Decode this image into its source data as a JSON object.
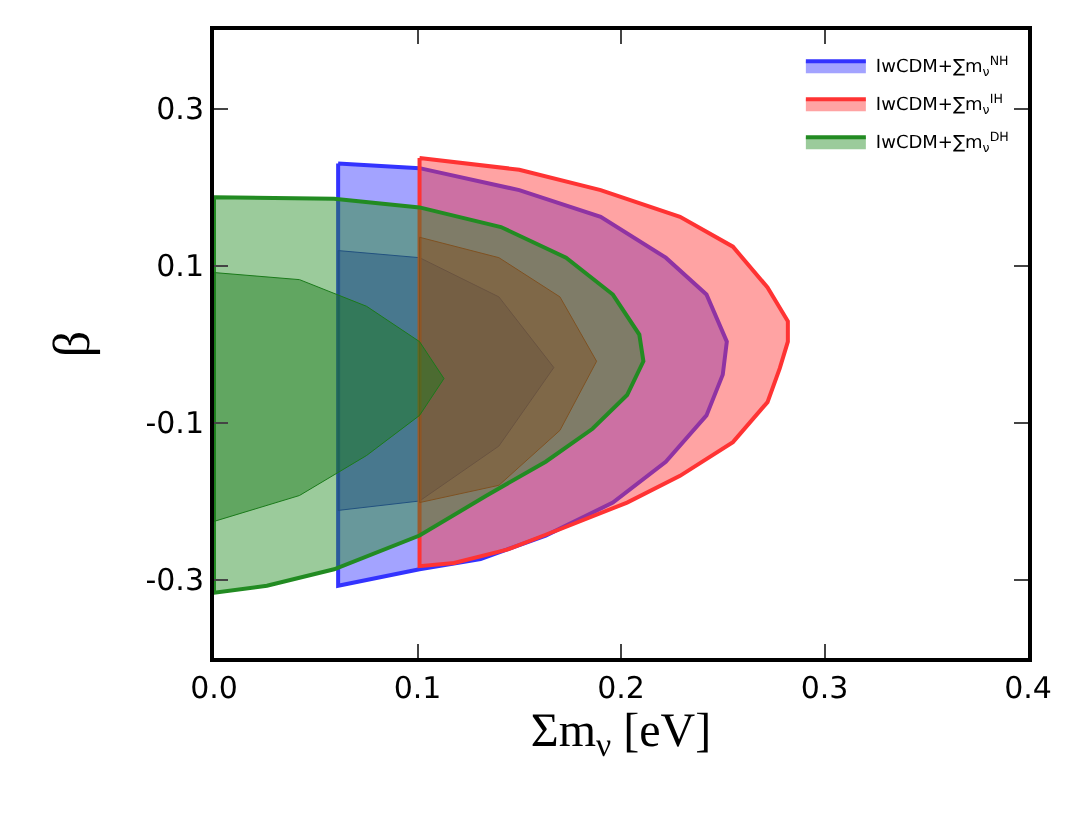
{
  "chart_data": {
    "type": "area",
    "xlabel": "Σm$_{ν}$ [eV]",
    "ylabel": "β",
    "xlim": [
      0,
      0.4
    ],
    "ylim": [
      -0.4,
      0.4
    ],
    "xticks": [
      {
        "value": 0,
        "label": "0.0"
      },
      0.1,
      0.2,
      0.3,
      {
        "value": 0.4,
        "label": "0.4"
      }
    ],
    "yticks": [
      -0.3,
      -0.1,
      0.1,
      0.3
    ],
    "grid": false,
    "legend": "top right",
    "series": [
      {
        "name": "IwCDM+∑m$_{ν}$$^{NH}$",
        "color": "#3333ff",
        "x": [
          0.061,
          0.101,
          0.15,
          0.19,
          0.222,
          0.242,
          0.252,
          0.25,
          0.242,
          0.222,
          0.196,
          0.163,
          0.131,
          0.101,
          0.061,
          0.061
        ],
        "values": [
          0.23,
          0.224,
          0.196,
          0.162,
          0.11,
          0.063,
          0.003,
          -0.039,
          -0.091,
          -0.15,
          -0.202,
          -0.244,
          -0.274,
          -0.287,
          -0.308,
          0.23
        ]
      },
      {
        "color": "#2222cc",
        "x": [
          0.061,
          0.101,
          0.14,
          0.167,
          0.14,
          0.101,
          0.061,
          0.061
        ],
        "values": [
          0.119,
          0.11,
          0.06,
          -0.03,
          -0.13,
          -0.2,
          -0.212,
          0.119
        ]
      },
      {
        "name": "IwCDM+∑m$_{ν}$$^{IH}$",
        "color": "#ff3333",
        "x": [
          0.101,
          0.15,
          0.19,
          0.229,
          0.255,
          0.272,
          0.282,
          0.282,
          0.278,
          0.272,
          0.255,
          0.229,
          0.203,
          0.17,
          0.144,
          0.118,
          0.101,
          0.101
        ],
        "values": [
          0.237,
          0.222,
          0.196,
          0.162,
          0.124,
          0.072,
          0.029,
          0.003,
          -0.031,
          -0.074,
          -0.125,
          -0.168,
          -0.202,
          -0.236,
          -0.262,
          -0.279,
          -0.283,
          0.237
        ]
      },
      {
        "color": "#cc2222",
        "x": [
          0.101,
          0.14,
          0.17,
          0.188,
          0.17,
          0.14,
          0.101,
          0.101
        ],
        "values": [
          0.136,
          0.11,
          0.06,
          -0.022,
          -0.11,
          -0.18,
          -0.202,
          0.136
        ]
      },
      {
        "name": "IwCDM+∑m$_{ν}$$^{DH}$",
        "color": "#228b22",
        "x": [
          0,
          0.059,
          0.101,
          0.141,
          0.173,
          0.196,
          0.209,
          0.211,
          0.203,
          0.186,
          0.163,
          0.134,
          0.101,
          0.059,
          0.026,
          0,
          0
        ],
        "values": [
          0.187,
          0.185,
          0.174,
          0.149,
          0.11,
          0.063,
          0.012,
          -0.022,
          -0.065,
          -0.108,
          -0.15,
          -0.193,
          -0.244,
          -0.287,
          -0.308,
          -0.317,
          0.187
        ]
      },
      {
        "color": "#1a7a1a",
        "x": [
          0,
          0.042,
          0.075,
          0.101,
          0.113,
          0.101,
          0.075,
          0.042,
          0,
          0
        ],
        "values": [
          0.091,
          0.082,
          0.048,
          0.003,
          -0.044,
          -0.091,
          -0.142,
          -0.193,
          -0.226,
          0.091
        ]
      }
    ]
  }
}
